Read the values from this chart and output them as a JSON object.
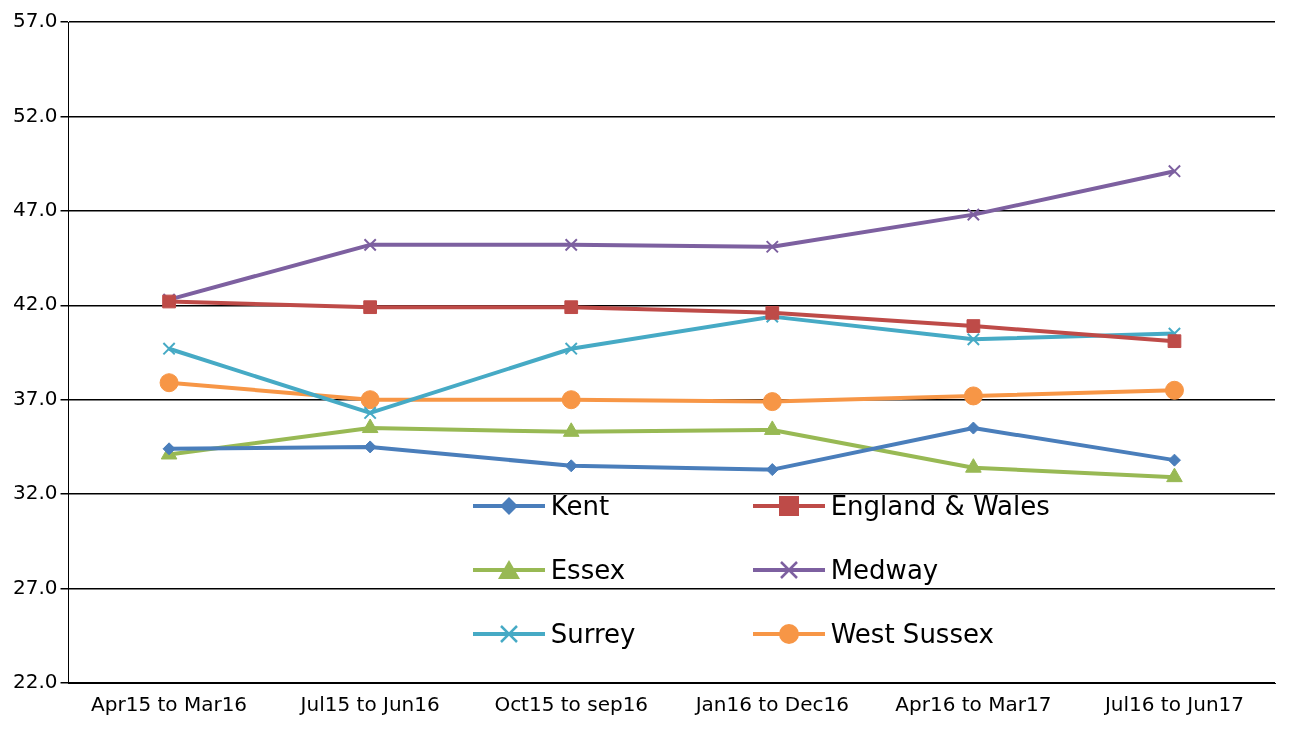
{
  "chart_data": {
    "type": "line",
    "categories": [
      "Apr15 to Mar16",
      "Jul15 to Jun16",
      "Oct15 to sep16",
      "Jan16 to Dec16",
      "Apr16 to Mar17",
      "Jul16 to Jun17"
    ],
    "series": [
      {
        "name": "Kent",
        "color": "#4a7ebb",
        "marker": "diamond",
        "values": [
          34.4,
          34.5,
          33.5,
          33.3,
          35.5,
          33.8
        ]
      },
      {
        "name": "England & Wales",
        "color": "#be4b48",
        "marker": "square",
        "values": [
          42.2,
          41.9,
          41.9,
          41.6,
          40.9,
          40.1
        ]
      },
      {
        "name": "Essex",
        "color": "#98b954",
        "marker": "triangle",
        "values": [
          34.1,
          35.5,
          35.3,
          35.4,
          33.4,
          32.9
        ]
      },
      {
        "name": "Medway",
        "color": "#7d60a0",
        "marker": "cross",
        "values": [
          42.3,
          45.2,
          45.2,
          45.1,
          46.8,
          49.1
        ]
      },
      {
        "name": "Surrey",
        "color": "#46aac5",
        "marker": "cross",
        "values": [
          39.7,
          36.3,
          39.7,
          41.4,
          40.2,
          40.5
        ]
      },
      {
        "name": "West Sussex",
        "color": "#f79646",
        "marker": "circle",
        "values": [
          37.9,
          37.0,
          37.0,
          36.9,
          37.2,
          37.5
        ]
      }
    ],
    "ylim": [
      22,
      57
    ],
    "yticks": [
      {
        "value": 22,
        "label": "22.0"
      },
      {
        "value": 27,
        "label": "27.0"
      },
      {
        "value": 32,
        "label": "32.0"
      },
      {
        "value": 37,
        "label": "37.0"
      },
      {
        "value": 42,
        "label": "42.0"
      },
      {
        "value": 47,
        "label": "47.0"
      },
      {
        "value": 52,
        "label": "52.0"
      },
      {
        "value": 57,
        "label": "57.0"
      }
    ],
    "grid": "y",
    "legend": "bottom",
    "line_style": "solid"
  }
}
